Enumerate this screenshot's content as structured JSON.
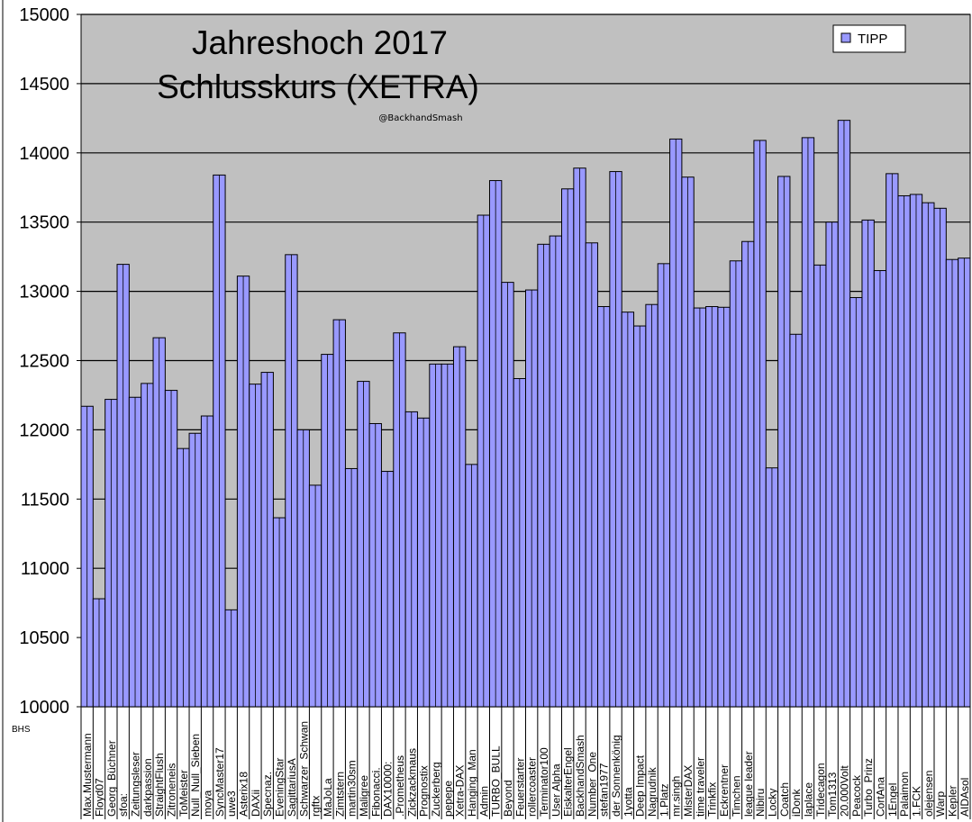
{
  "chart_data": {
    "type": "bar",
    "title": "Jahreshoch 2017",
    "subtitle": "Schlusskurs (XETRA)",
    "annotation": "@BackhandSmash",
    "corner_label": "BHS",
    "xlabel": "",
    "ylabel": "",
    "ylim": [
      10000,
      15000
    ],
    "yticks": [
      10000,
      10500,
      11000,
      11500,
      12000,
      12500,
      13000,
      13500,
      14000,
      14500,
      15000
    ],
    "grid": true,
    "legend_position": "top-right",
    "colors": {
      "bar": "#9999ff",
      "plot_bg": "#c0c0c0",
      "outline": "#000000"
    },
    "series": [
      {
        "name": "TIPP",
        "values": [
          12170,
          10780,
          12220,
          13195,
          12235,
          12335,
          12665,
          12285,
          11865,
          11975,
          12100,
          13840,
          10700,
          13110,
          12330,
          12415,
          11365,
          13265,
          12000,
          11600,
          12545,
          12795,
          11720,
          12350,
          12045,
          11700,
          12700,
          12130,
          12085,
          12475,
          12475,
          12600,
          11750,
          13550,
          13800,
          13065,
          12370,
          13010,
          13340,
          13400,
          13740,
          13890,
          13350,
          12890,
          13865,
          12850,
          12750,
          12905,
          13200,
          14100,
          13825,
          12880,
          12890,
          12885,
          13220,
          13360,
          14090,
          11725,
          13830,
          12690,
          14110,
          13190,
          13500,
          14235,
          12955,
          13515,
          13150,
          13850,
          13690,
          13700,
          13640,
          13600,
          13230,
          13240
        ]
      }
    ],
    "categories": [
      "Max.Mustermann",
      "Floyd07",
      "Georg_Büchner",
      "sfoa:",
      "Zeitungsleser",
      "darkpassion",
      "StraightFlush",
      "Zitroneneis",
      "ToMeister",
      "Null_Null_Sieben",
      "moya",
      "SyncMaster17",
      "uwe3",
      "Asterix18",
      "DAXii",
      "Specnaz.",
      "EveningStar",
      "SagittariusA",
      "Schwarzer_Schwan",
      "rgftx",
      "MaJoLa",
      "Zimtstern",
      "martin30sm",
      "Maligree",
      "Fibonacci.",
      "DAX10000:",
      ".Prometheus",
      "Zickzackmaus",
      "Prognostix",
      "Zuckerberg",
      "pepepe",
      "Xetra-DAX",
      "Hanging_Man",
      "Admin",
      "TURBO_BULL",
      "Beyond",
      "Feuerstarter",
      "rollercoaster",
      "Terminator100",
      "User Alpha",
      "EiskalterEngel",
      "BackhandSmash",
      "Number_One",
      "stefan1977",
      "der Sonnenkönig",
      "1yotta",
      "Deep Impact",
      "Nagrudnik",
      "1.Platz",
      "mr.singh",
      "MisterDAX",
      "time traveler",
      "Trinkfix",
      "Eckrentner",
      "Timchen",
      "league leader",
      "Nibiru",
      "Locky",
      "Coatch",
      "iDonk",
      "laplace",
      "Tridecagon",
      "Tom1313",
      "20.000Volt",
      "Peacock",
      "Turbo_Prinz",
      "CortAna",
      "1Engel",
      "Palaimon",
      "1.FCK",
      "olejensen",
      "Warp",
      "Kepler",
      "AIDAsol"
    ]
  }
}
